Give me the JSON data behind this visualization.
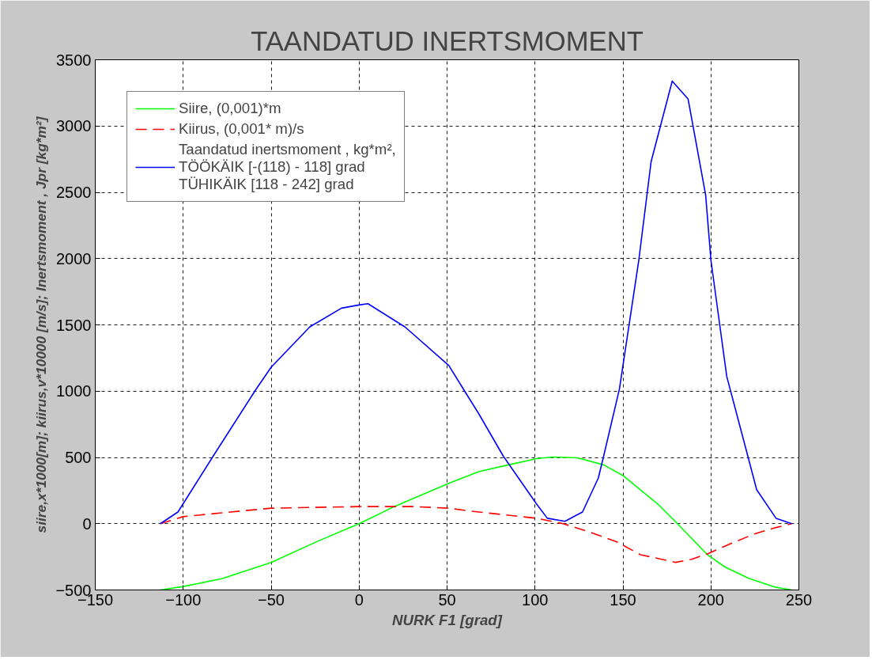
{
  "chart_data": {
    "type": "line",
    "title": "TAANDATUD INERTSMOMENT",
    "xlabel": "NURK F1 [grad]",
    "ylabel": "siire,x*1000[m]; kiirus,v*10000 [m/s]; Inertsmoment , Jpr [kg*m²]",
    "xlim": [
      -150,
      250
    ],
    "xticks": [
      -150,
      -100,
      -50,
      0,
      50,
      100,
      150,
      200,
      250
    ],
    "ylim": [
      -500,
      3500
    ],
    "yticks": [
      -500,
      0,
      500,
      1000,
      1500,
      2000,
      2500,
      3000,
      3500
    ],
    "grid": true,
    "legend": "top left",
    "marker": "none",
    "series": [
      {
        "name": "Siire, (0,001)*m",
        "color": "#00ff00",
        "line_style": "solid",
        "x": [
          -113,
          -100,
          -78,
          -50,
          -24,
          0,
          20,
          51,
          68,
          85,
          101,
          110,
          124,
          139,
          150,
          170,
          181,
          198,
          208,
          222,
          237,
          246
        ],
        "values": [
          -500,
          -474,
          -415,
          -292,
          -135,
          0,
          129,
          304,
          392,
          444,
          491,
          503,
          497,
          444,
          363,
          146,
          0,
          -234,
          -327,
          -415,
          -480,
          -500
        ]
      },
      {
        "name": "Kiirus, (0,001* m)/s",
        "color": "#ff0000",
        "line_style": "dashed",
        "x": [
          -113,
          -100,
          -78,
          -50,
          0,
          31,
          51,
          64,
          101,
          116,
          130,
          146,
          160,
          180,
          189,
          198,
          212,
          225,
          237,
          246
        ],
        "values": [
          0,
          53,
          82,
          117,
          129,
          129,
          117,
          94,
          41,
          0,
          -58,
          -134,
          -234,
          -292,
          -269,
          -228,
          -146,
          -76,
          -29,
          0
        ]
      },
      {
        "name": "Taandatud inertsmoment , kg*m²,\nTÖÖKÄIK [-(118) - 118] grad\nTÜHIKÄIK [118 - 242] grad",
        "color": "#0000ff",
        "line_style": "solid",
        "x": [
          -113,
          -103,
          -83,
          -59,
          -50,
          -28,
          -10,
          0,
          5,
          26,
          51,
          60,
          68,
          82,
          101,
          107,
          117,
          127,
          136,
          139,
          148,
          159,
          166,
          178,
          187,
          197,
          200,
          209,
          221,
          226,
          237,
          246
        ],
        "values": [
          0,
          88,
          509,
          1006,
          1181,
          1485,
          1626,
          1650,
          1660,
          1485,
          1193,
          1000,
          830,
          509,
          146,
          41,
          18,
          88,
          345,
          509,
          1017,
          1988,
          2731,
          3339,
          3205,
          2480,
          1988,
          1111,
          509,
          257,
          41,
          0
        ]
      }
    ]
  }
}
